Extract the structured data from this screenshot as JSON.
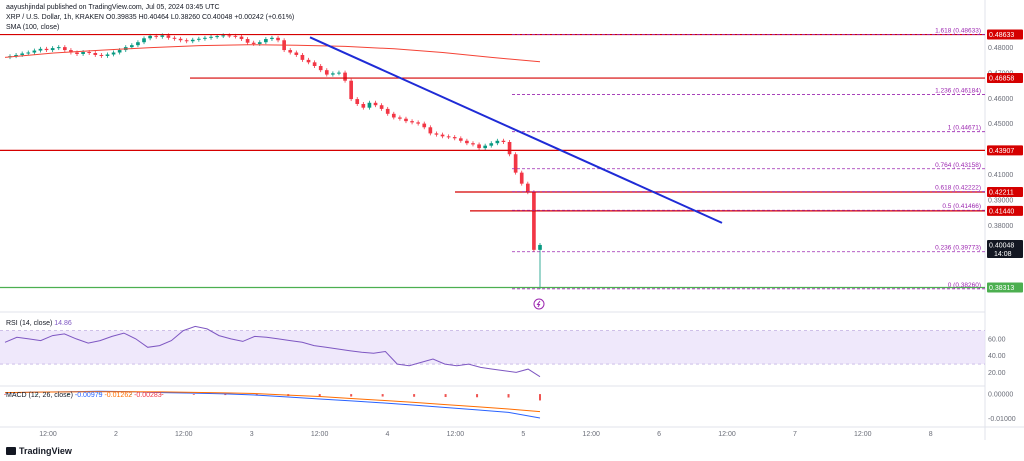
{
  "header": {
    "publisher": "aayushjindal published on TradingView.com, Jul 05, 2024 03:45 UTC",
    "symbol_line": "XRP / U.S. Dollar, 1h, KRAKEN",
    "ohlc": "O0.39835 H0.40464 L0.38260 C0.40048 +0.00242 (+0.61%)",
    "sma_label": "SMA (100, close)",
    "rsi_label": "RSI (14, close)",
    "rsi_value": "14.86",
    "macd_label": "MACD (12, 26, close)",
    "macd_values": [
      "-0.00979",
      "-0.01262",
      "-0.00283"
    ]
  },
  "footer": {
    "brand": "TradingView"
  },
  "colors": {
    "candle_up": "#089981",
    "candle_down": "#f23645",
    "sma": "#f44336",
    "trendline": "#1f2bd6",
    "fib": "#9c27b0",
    "support": "#4caf50",
    "resistance": "#d50000",
    "rsi_line": "#7e57c2",
    "rsi_band": "#e8defa",
    "macd_line": "#2962ff",
    "signal_line": "#ff6d00"
  },
  "chart_data": {
    "type": "candlestick",
    "x_ticks": [
      "12:00",
      "2",
      "12:00",
      "3",
      "12:00",
      "4",
      "12:00",
      "5",
      "12:00",
      "6",
      "12:00",
      "7",
      "12:00",
      "8"
    ],
    "price_axis_ticks": [
      "0.48000",
      "0.47000",
      "0.46000",
      "0.45000",
      "0.43000",
      "0.41000",
      "0.39000",
      "0.38000"
    ],
    "ylim": [
      0.376,
      0.489
    ],
    "candle_count": 88,
    "candles_close": [
      0.4775,
      0.478,
      0.4786,
      0.479,
      0.4798,
      0.4805,
      0.48,
      0.4808,
      0.4812,
      0.48,
      0.479,
      0.4784,
      0.4792,
      0.4788,
      0.478,
      0.4776,
      0.4782,
      0.479,
      0.48,
      0.4812,
      0.482,
      0.4832,
      0.4848,
      0.4858,
      0.4854,
      0.486,
      0.485,
      0.4846,
      0.484,
      0.4836,
      0.4842,
      0.4846,
      0.485,
      0.4854,
      0.4857,
      0.486,
      0.4858,
      0.4855,
      0.4845,
      0.483,
      0.4825,
      0.4832,
      0.4845,
      0.485,
      0.484,
      0.48,
      0.479,
      0.478,
      0.476,
      0.475,
      0.4735,
      0.4718,
      0.47,
      0.4705,
      0.4708,
      0.4675,
      0.46,
      0.458,
      0.4565,
      0.4585,
      0.4575,
      0.456,
      0.454,
      0.4525,
      0.452,
      0.451,
      0.4505,
      0.45,
      0.4485,
      0.446,
      0.4455,
      0.4448,
      0.4445,
      0.444,
      0.443,
      0.442,
      0.4415,
      0.44,
      0.441,
      0.442,
      0.443,
      0.4425,
      0.4375,
      0.43,
      0.4255,
      0.422,
      0.3985,
      0.4005
    ],
    "price_labels": [
      {
        "text": "0.48633",
        "value": 0.48633
      },
      {
        "text": "0.46858",
        "value": 0.46858
      },
      {
        "text": "0.43907",
        "value": 0.43907
      },
      {
        "text": "0.42211",
        "value": 0.42211
      },
      {
        "text": "0.41440",
        "value": 0.4144
      },
      {
        "text": "0.40048",
        "value": 0.40048,
        "countdown": "14:08"
      },
      {
        "text": "0.38313",
        "value": 0.38313
      }
    ],
    "sma100": [
      0.477,
      0.4788,
      0.48,
      0.481,
      0.4818,
      0.4822,
      0.482,
      0.4815,
      0.4805,
      0.479,
      0.477,
      0.4752
    ],
    "horizontal_levels": [
      0.48633,
      0.46858,
      0.43907,
      0.42211,
      0.4144,
      0.38313
    ],
    "trendline": {
      "start": 0.4852,
      "end": 0.4095
    },
    "fibonacci": [
      {
        "label": "1.618 (0.48633)",
        "value": 0.48633
      },
      {
        "label": "1.236 (0.46184)",
        "value": 0.46184
      },
      {
        "label": "1 (0.44671)",
        "value": 0.44671
      },
      {
        "label": "0.764 (0.43158)",
        "value": 0.43158
      },
      {
        "label": "0.618 (0.42222)",
        "value": 0.42222
      },
      {
        "label": "0.5 (0.41466)",
        "value": 0.41466
      },
      {
        "label": "0.236 (0.39773)",
        "value": 0.39773
      },
      {
        "label": "0 (0.38260)",
        "value": 0.3826
      }
    ],
    "rsi": {
      "axis_ticks": [
        "60.00",
        "40.00",
        "20.00"
      ],
      "ylim": [
        5,
        85
      ],
      "band": [
        30,
        70
      ],
      "values": [
        56,
        62,
        60,
        58,
        64,
        66,
        60,
        55,
        58,
        63,
        67,
        60,
        50,
        52,
        58,
        70,
        75,
        72,
        64,
        60,
        57,
        63,
        62,
        60,
        58,
        56,
        52,
        50,
        48,
        46,
        44,
        43,
        45,
        30,
        28,
        32,
        36,
        30,
        28,
        30,
        26,
        24,
        22,
        20,
        24,
        14.86
      ]
    },
    "macd": {
      "axis_ticks": [
        "0.00000",
        "-0.01000"
      ],
      "ylim": [
        -0.0135,
        0.0025
      ],
      "macd": [
        0.0005,
        0.0008,
        0.001,
        0.0012,
        0.001,
        0.0006,
        0.0004,
        0.0001,
        -0.0004,
        -0.0012,
        -0.002,
        -0.0028,
        -0.0036,
        -0.0045,
        -0.0055,
        -0.0065,
        -0.0075,
        -0.0098
      ],
      "signal": [
        0.0006,
        0.0008,
        0.0009,
        0.001,
        0.001,
        0.0009,
        0.0007,
        0.0005,
        0.0002,
        -0.0004,
        -0.001,
        -0.0018,
        -0.0026,
        -0.0034,
        -0.0043,
        -0.0052,
        -0.0061,
        -0.0072
      ]
    }
  }
}
